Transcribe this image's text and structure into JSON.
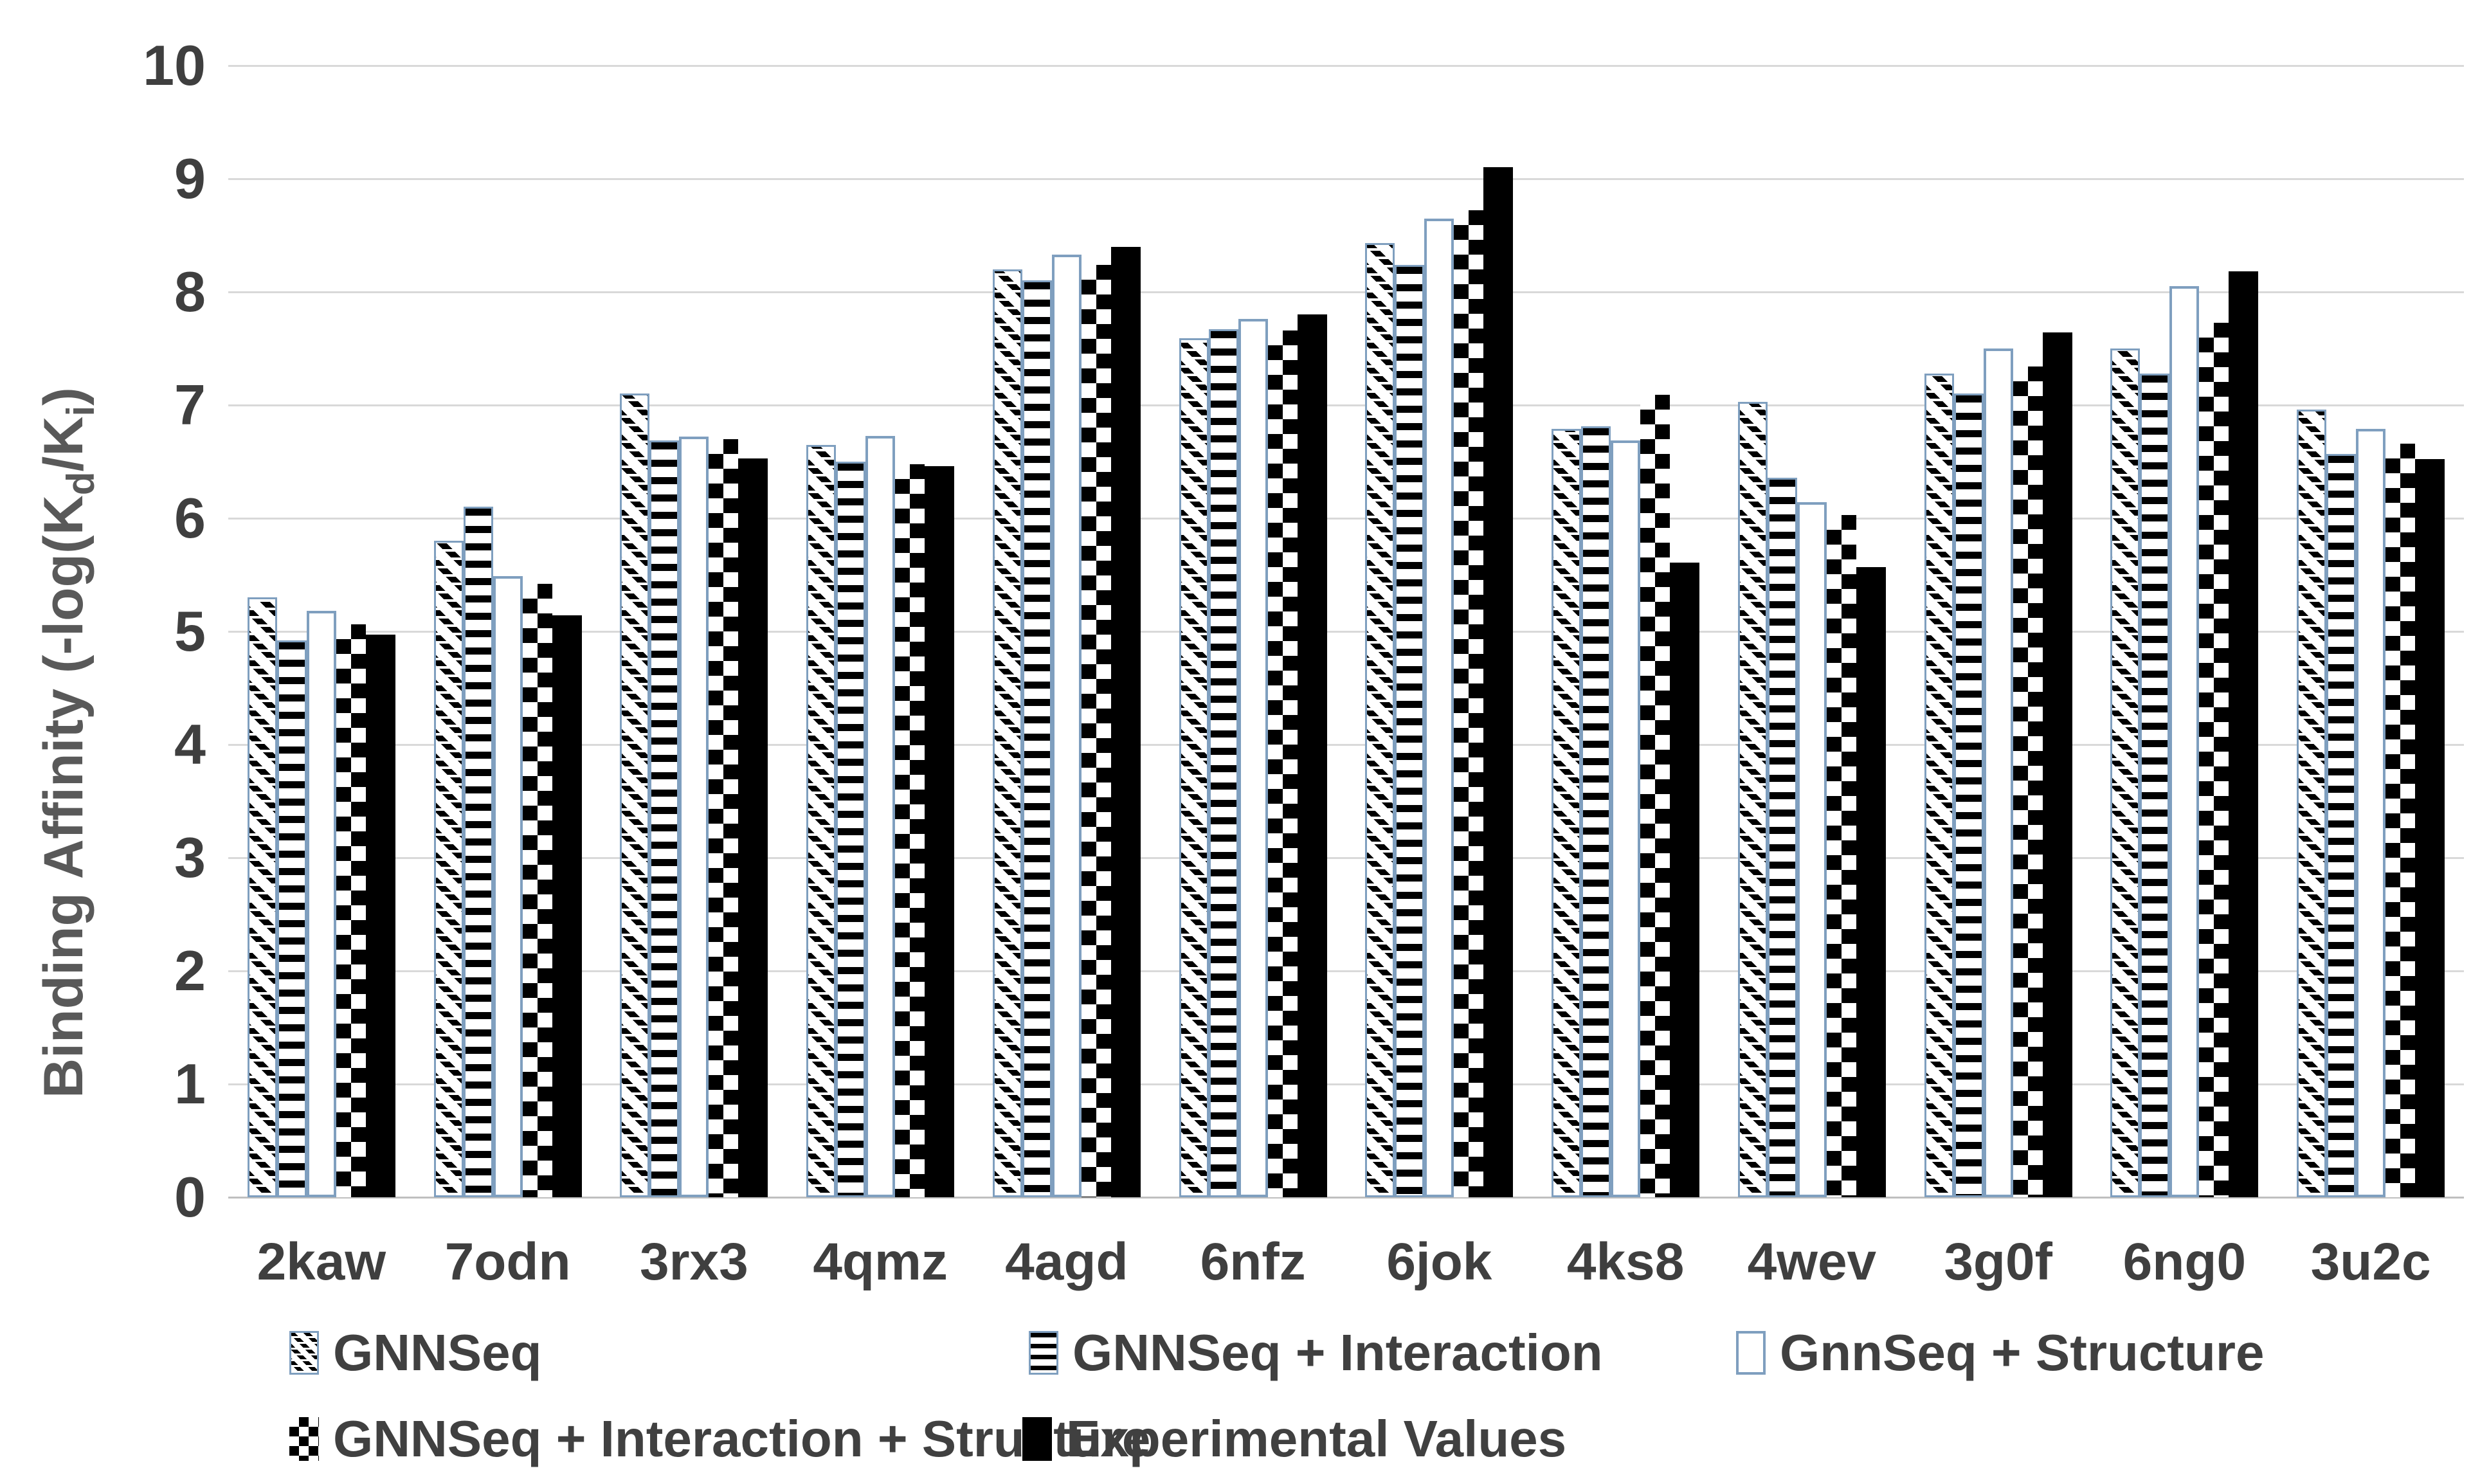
{
  "y_axis_title_plain": "Binding Affinity (-log(Kd/Ki)",
  "y_axis_title_parts": {
    "pre": "Binding Affinity (-log(K",
    "sub1": "d",
    "mid": "/K",
    "sub2": "i",
    "post": ")"
  },
  "colors": {
    "bar_outline": "#7f9fbf",
    "gridline": "#d9d9d9",
    "axis_line": "#bfbfbf",
    "text": "#404040",
    "black": "#000000",
    "white": "#ffffff"
  },
  "chart_data": {
    "type": "bar",
    "title": "",
    "xlabel": "",
    "ylabel": "Binding Affinity (-log(Kd/Ki)",
    "ylim": [
      0,
      10
    ],
    "y_ticks": [
      0,
      1,
      2,
      3,
      4,
      5,
      6,
      7,
      8,
      9,
      10
    ],
    "grid": true,
    "legend_position": "bottom",
    "categories": [
      "2kaw",
      "7odn",
      "3rx3",
      "4qmz",
      "4agd",
      "6nfz",
      "6jok",
      "4ks8",
      "4wev",
      "3g0f",
      "6ng0",
      "3u2c"
    ],
    "series": [
      {
        "name": "GNNSeq",
        "pattern": "diagonal-hatch",
        "values": [
          5.3,
          5.8,
          7.1,
          6.65,
          8.2,
          7.59,
          8.43,
          6.79,
          7.03,
          7.28,
          7.5,
          6.96
        ]
      },
      {
        "name": "GNNSeq + Interaction",
        "pattern": "horizontal-lines",
        "values": [
          4.92,
          6.1,
          6.69,
          6.5,
          8.1,
          7.67,
          8.24,
          6.81,
          6.36,
          7.1,
          7.28,
          6.57
        ]
      },
      {
        "name": "GnnSeq + Structure",
        "pattern": "white-outline",
        "values": [
          5.18,
          5.49,
          6.72,
          6.73,
          8.33,
          7.76,
          8.65,
          6.69,
          6.14,
          7.5,
          8.05,
          6.79
        ]
      },
      {
        "name": "GNNSeq + Interaction + Structure",
        "pattern": "checkerboard",
        "values": [
          5.06,
          5.42,
          6.7,
          6.48,
          8.24,
          7.66,
          8.72,
          7.09,
          6.03,
          7.34,
          7.73,
          6.66
        ]
      },
      {
        "name": "Experimental Values",
        "pattern": "solid-black",
        "values": [
          4.97,
          5.14,
          6.53,
          6.46,
          8.4,
          7.8,
          9.1,
          5.61,
          5.57,
          7.64,
          8.18,
          6.52
        ]
      }
    ]
  }
}
